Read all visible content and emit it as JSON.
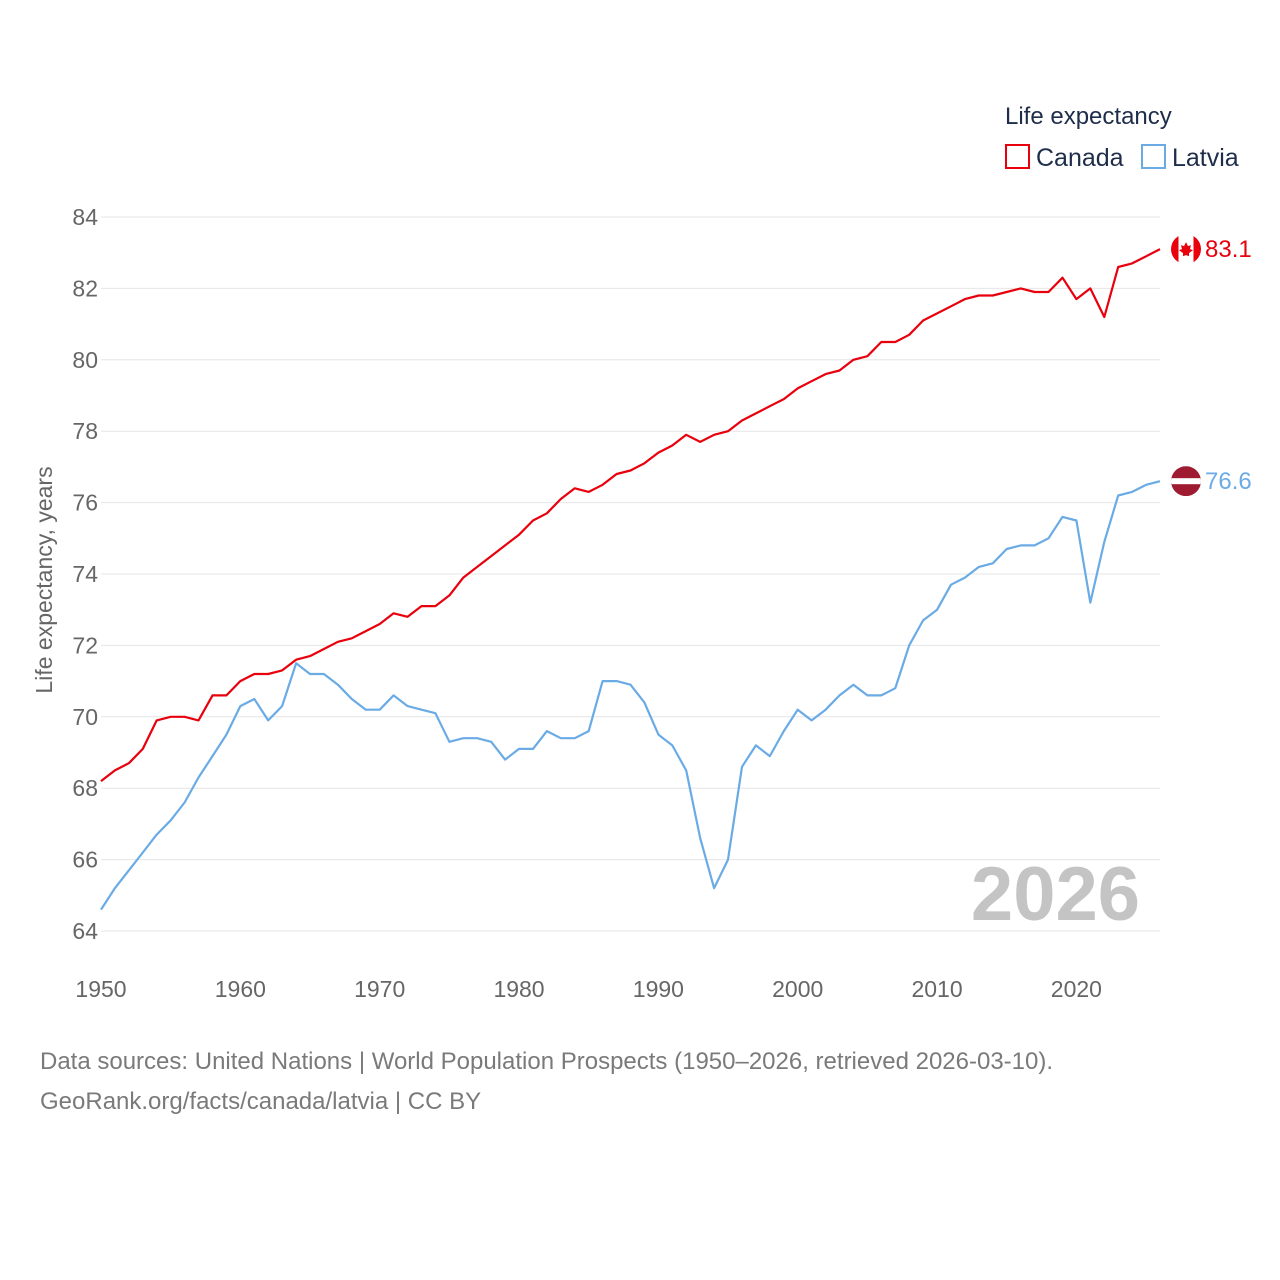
{
  "chart_data": {
    "type": "line",
    "title": "",
    "xlabel": "",
    "ylabel": "Life expectancy, years",
    "xlim": [
      1950,
      2026
    ],
    "ylim": [
      64,
      84
    ],
    "x_ticks": [
      1950,
      1960,
      1970,
      1980,
      1990,
      2000,
      2010,
      2020
    ],
    "y_ticks": [
      64,
      66,
      68,
      70,
      72,
      74,
      76,
      78,
      80,
      82,
      84
    ],
    "grid": true,
    "legend": {
      "title": "Life expectancy",
      "position": "top-right"
    },
    "watermark_year": "2026",
    "x_start": 1950,
    "series": [
      {
        "name": "Canada",
        "color": "#e8000d",
        "end_label": "83.1",
        "values": [
          68.2,
          68.5,
          68.7,
          69.1,
          69.9,
          70.0,
          70.0,
          69.9,
          70.6,
          70.6,
          71.0,
          71.2,
          71.2,
          71.3,
          71.6,
          71.7,
          71.9,
          72.1,
          72.2,
          72.4,
          72.6,
          72.9,
          72.8,
          73.1,
          73.1,
          73.4,
          73.9,
          74.2,
          74.5,
          74.8,
          75.1,
          75.5,
          75.7,
          76.1,
          76.4,
          76.3,
          76.5,
          76.8,
          76.9,
          77.1,
          77.4,
          77.6,
          77.9,
          77.7,
          77.9,
          78.0,
          78.3,
          78.5,
          78.7,
          78.9,
          79.2,
          79.4,
          79.6,
          79.7,
          80.0,
          80.1,
          80.5,
          80.5,
          80.7,
          81.1,
          81.3,
          81.5,
          81.7,
          81.8,
          81.8,
          81.9,
          82.0,
          81.9,
          81.9,
          82.3,
          81.7,
          82.0,
          81.2,
          82.6,
          82.7,
          82.9,
          83.1
        ]
      },
      {
        "name": "Latvia",
        "color": "#6aabe6",
        "end_label": "76.6",
        "values": [
          64.6,
          65.2,
          65.7,
          66.2,
          66.7,
          67.1,
          67.6,
          68.3,
          68.9,
          69.5,
          70.3,
          70.5,
          69.9,
          70.3,
          71.5,
          71.2,
          71.2,
          70.9,
          70.5,
          70.2,
          70.2,
          70.6,
          70.3,
          70.2,
          70.1,
          69.3,
          69.4,
          69.4,
          69.3,
          68.8,
          69.1,
          69.1,
          69.6,
          69.4,
          69.4,
          69.6,
          71.0,
          71.0,
          70.9,
          70.4,
          69.5,
          69.2,
          68.5,
          66.6,
          65.2,
          66.0,
          68.6,
          69.2,
          68.9,
          69.6,
          70.2,
          69.9,
          70.2,
          70.6,
          70.9,
          70.6,
          70.6,
          70.8,
          72.0,
          72.7,
          73.0,
          73.7,
          73.9,
          74.2,
          74.3,
          74.7,
          74.8,
          74.8,
          75.0,
          75.6,
          75.5,
          73.2,
          74.9,
          76.2,
          76.3,
          76.5,
          76.6
        ]
      }
    ]
  },
  "footer": {
    "line1": "Data sources: United Nations | World Population Prospects (1950–2026, retrieved 2026-03-10).",
    "line2": "GeoRank.org/facts/canada/latvia | CC BY"
  }
}
